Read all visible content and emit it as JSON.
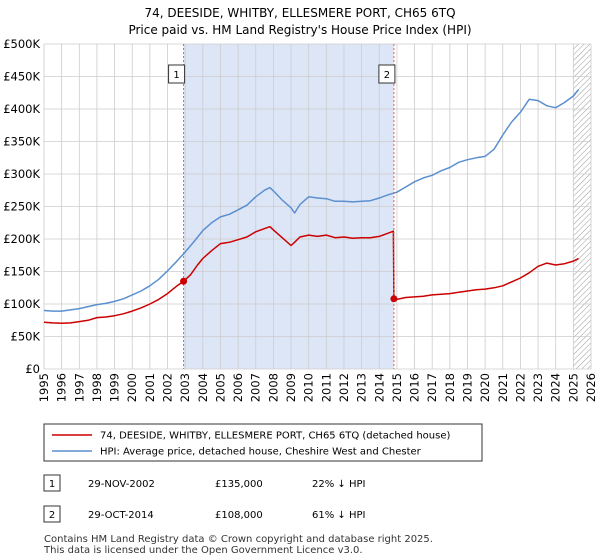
{
  "chart_data": {
    "type": "line",
    "title": "74, DEESIDE, WHITBY, ELLESMERE PORT, CH65 6TQ",
    "subtitle": "Price paid vs. HM Land Registry's House Price Index (HPI)",
    "xlabel": "",
    "ylabel": "",
    "xlim": [
      1995,
      2026
    ],
    "ylim": [
      0,
      500000
    ],
    "y_ticks": [
      {
        "value": 0,
        "label": "£0"
      },
      {
        "value": 50000,
        "label": "£50K"
      },
      {
        "value": 100000,
        "label": "£100K"
      },
      {
        "value": 150000,
        "label": "£150K"
      },
      {
        "value": 200000,
        "label": "£200K"
      },
      {
        "value": 250000,
        "label": "£250K"
      },
      {
        "value": 300000,
        "label": "£300K"
      },
      {
        "value": 350000,
        "label": "£350K"
      },
      {
        "value": 400000,
        "label": "£400K"
      },
      {
        "value": 450000,
        "label": "£450K"
      },
      {
        "value": 500000,
        "label": "£500K"
      }
    ],
    "x_ticks": [
      "1995",
      "1996",
      "1997",
      "1998",
      "1999",
      "2000",
      "2001",
      "2002",
      "2003",
      "2004",
      "2005",
      "2006",
      "2007",
      "2008",
      "2009",
      "2010",
      "2011",
      "2012",
      "2013",
      "2014",
      "2015",
      "2016",
      "2017",
      "2018",
      "2019",
      "2020",
      "2021",
      "2022",
      "2023",
      "2024",
      "2025",
      "2026"
    ],
    "grid": true,
    "shaded_region": {
      "from": 2002.91,
      "to": 2014.83
    },
    "hatched_from": 2025.0,
    "series": [
      {
        "name": "74, DEESIDE, WHITBY, ELLESMERE PORT, CH65 6TQ (detached house)",
        "color": "#cc0000",
        "x": [
          1995,
          1995.5,
          1996,
          1996.5,
          1997,
          1997.5,
          1998,
          1998.5,
          1999,
          1999.5,
          2000,
          2000.5,
          2001,
          2001.5,
          2002,
          2002.5,
          2002.91,
          2003.3,
          2003.7,
          2004,
          2004.5,
          2005,
          2005.5,
          2006,
          2006.5,
          2007,
          2007.5,
          2007.8,
          2008,
          2008.5,
          2009,
          2009.2,
          2009.5,
          2010,
          2010.5,
          2011,
          2011.5,
          2012,
          2012.5,
          2013,
          2013.5,
          2014,
          2014.5,
          2014.8,
          2014.83,
          2015,
          2015.5,
          2016,
          2016.5,
          2017,
          2017.5,
          2018,
          2018.5,
          2019,
          2019.5,
          2020,
          2020.5,
          2021,
          2021.5,
          2022,
          2022.5,
          2023,
          2023.5,
          2024,
          2024.5,
          2025,
          2025.3
        ],
        "values": [
          72000,
          71000,
          70500,
          71000,
          73000,
          75000,
          79000,
          80000,
          82000,
          85000,
          89000,
          94000,
          100000,
          107000,
          116000,
          127000,
          135000,
          145000,
          160000,
          170000,
          182000,
          193000,
          195000,
          199000,
          203000,
          211000,
          216000,
          219000,
          214000,
          202000,
          190000,
          195000,
          203000,
          206000,
          204000,
          206000,
          202000,
          203000,
          201000,
          202000,
          202000,
          204000,
          209000,
          212000,
          108000,
          107000,
          110000,
          111000,
          112000,
          114000,
          115000,
          116000,
          118000,
          120000,
          122000,
          123000,
          125000,
          128000,
          134000,
          140000,
          148000,
          158000,
          163000,
          160000,
          162000,
          166000,
          170000
        ]
      },
      {
        "name": "HPI: Average price, detached house, Cheshire West and Chester",
        "color": "#5b8fd0",
        "x": [
          1995,
          1995.5,
          1996,
          1996.5,
          1997,
          1997.5,
          1998,
          1998.5,
          1999,
          1999.5,
          2000,
          2000.5,
          2001,
          2001.5,
          2002,
          2002.5,
          2003,
          2003.5,
          2004,
          2004.5,
          2005,
          2005.5,
          2006,
          2006.5,
          2007,
          2007.5,
          2007.8,
          2008,
          2008.5,
          2009,
          2009.2,
          2009.5,
          2010,
          2010.5,
          2011,
          2011.5,
          2012,
          2012.5,
          2013,
          2013.5,
          2014,
          2014.5,
          2015,
          2015.5,
          2016,
          2016.5,
          2017,
          2017.5,
          2018,
          2018.5,
          2019,
          2019.5,
          2020,
          2020.5,
          2021,
          2021.5,
          2022,
          2022.5,
          2023,
          2023.5,
          2024,
          2024.5,
          2025,
          2025.3
        ],
        "values": [
          90000,
          89000,
          89000,
          91000,
          93000,
          96000,
          99000,
          101000,
          104000,
          108000,
          114000,
          120000,
          128000,
          138000,
          151000,
          165000,
          180000,
          196000,
          213000,
          225000,
          234000,
          238000,
          245000,
          252000,
          265000,
          275000,
          279000,
          274000,
          260000,
          248000,
          240000,
          253000,
          265000,
          263000,
          262000,
          258000,
          258000,
          257000,
          258000,
          259000,
          263000,
          268000,
          272000,
          280000,
          288000,
          294000,
          298000,
          305000,
          310000,
          318000,
          322000,
          325000,
          327000,
          338000,
          360000,
          380000,
          395000,
          415000,
          413000,
          405000,
          402000,
          410000,
          420000,
          430000
        ]
      }
    ],
    "annotations": [
      {
        "label": "1",
        "x": 2002.91
      },
      {
        "label": "2",
        "x": 2014.83
      }
    ]
  },
  "table": [
    {
      "num": "1",
      "date": "29-NOV-2002",
      "price": "£135,000",
      "hpi": "22% ↓ HPI"
    },
    {
      "num": "2",
      "date": "29-OCT-2014",
      "price": "£108,000",
      "hpi": "61% ↓ HPI"
    }
  ],
  "footer": {
    "line1": "Contains HM Land Registry data © Crown copyright and database right 2025.",
    "line2": "This data is licensed under the Open Government Licence v3.0."
  },
  "colors": {
    "shade": "#dde6f7",
    "grid": "#cccccc",
    "marker": "#cc0000",
    "vline": "#e06060"
  }
}
